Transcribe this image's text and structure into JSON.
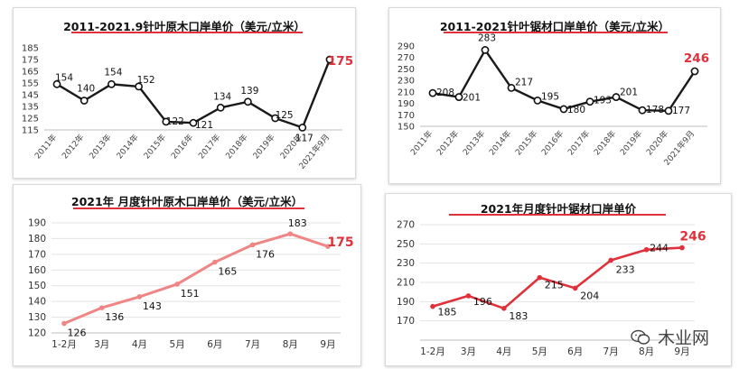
{
  "chart_data": [
    {
      "type": "line",
      "title": "2011-2021.9针叶原木口岸单价（美元/立米）",
      "categories": [
        "2011年",
        "2012年",
        "2013年",
        "2014年",
        "2015年",
        "2016年",
        "2017年",
        "2018年",
        "2019年",
        "2020年",
        "2021年9月"
      ],
      "values": [
        154,
        140,
        154,
        152,
        122,
        121,
        134,
        139,
        125,
        117,
        175
      ],
      "labels": [
        "154",
        "140",
        "154",
        "152",
        "122",
        "121",
        "134",
        "139",
        "125",
        "117",
        "175"
      ],
      "yticks": [
        115,
        125,
        135,
        145,
        155,
        165,
        175,
        185
      ],
      "ylim": [
        115,
        185
      ],
      "line_color": "#1a1a1a",
      "highlight_color": "#e0303a",
      "grid": false
    },
    {
      "type": "line",
      "title": "2011-2021针叶锯材口岸单价（美元/立米）",
      "categories": [
        "2011年",
        "2012年",
        "2013年",
        "2014年",
        "2015年",
        "2016年",
        "2017年",
        "2018年",
        "2019年",
        "2020年",
        "2021年9月"
      ],
      "values": [
        208,
        201,
        283,
        217,
        195,
        180,
        193,
        201,
        178,
        177,
        246
      ],
      "labels": [
        "208",
        "201",
        "283",
        "217",
        "195",
        "180",
        "193",
        "201",
        "178",
        "177",
        "246"
      ],
      "yticks": [
        150,
        170,
        190,
        210,
        230,
        250,
        270,
        290
      ],
      "ylim": [
        150,
        290
      ],
      "line_color": "#1a1a1a",
      "highlight_color": "#e0303a",
      "grid": false
    },
    {
      "type": "line",
      "title": "2021年 月度针叶原木口岸单价（美元/立米）",
      "categories": [
        "1-2月",
        "3月",
        "4月",
        "5月",
        "6月",
        "7月",
        "8月",
        "9月"
      ],
      "values": [
        126,
        136,
        143,
        151,
        165,
        176,
        183,
        175
      ],
      "labels": [
        "126",
        "136",
        "143",
        "151",
        "165",
        "176",
        "183",
        "175"
      ],
      "yticks": [
        120,
        130,
        140,
        150,
        160,
        170,
        180,
        190
      ],
      "ylim": [
        120,
        190
      ],
      "line_color": "#f08585",
      "highlight_color": "#e0303a",
      "grid": true
    },
    {
      "type": "line",
      "title": "2021年月度针叶锯材口岸单价",
      "categories": [
        "1-2月",
        "3月",
        "4月",
        "5月",
        "6月",
        "7月",
        "8月",
        "9月"
      ],
      "values": [
        185,
        196,
        183,
        215,
        204,
        233,
        244,
        246
      ],
      "labels": [
        "185",
        "196",
        "183",
        "215",
        "204",
        "233",
        "244",
        "246"
      ],
      "yticks": [
        170,
        190,
        210,
        230,
        250,
        270
      ],
      "ylim": [
        150,
        270
      ],
      "line_color": "#e0303a",
      "highlight_color": "#e0303a",
      "grid": true
    }
  ],
  "watermark": {
    "text": "木业网"
  }
}
